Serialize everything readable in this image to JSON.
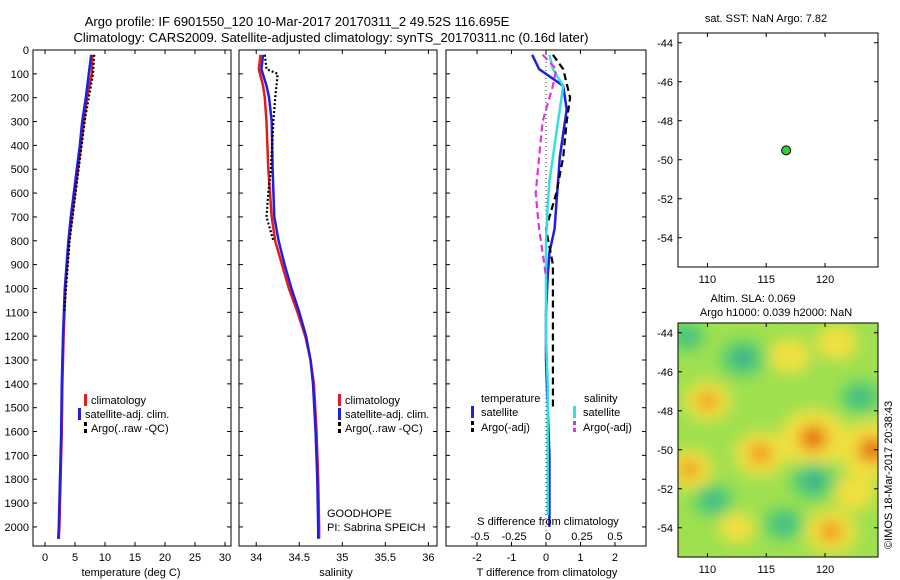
{
  "header": {
    "title_line1": "Argo profile: IF 6901550_120 10-Mar-2017 20170311_2 49.52S 116.695E",
    "title_line2": "Climatology: CARS2009. Satellite-adjusted climatology: synTS_20170311.nc (0.16d later)"
  },
  "colors": {
    "red": "#e41a1c",
    "blue": "#1f1fe0",
    "black": "#000000",
    "cyan": "#33e0e0",
    "magenta": "#e033e0",
    "argo_marker": "#33cc33"
  },
  "chart_data": [
    {
      "type": "line",
      "name": "temperature-profile",
      "xlabel": "temperature (deg C)",
      "ylabel": "",
      "xlim": [
        -2,
        31
      ],
      "ylim": [
        2080,
        0
      ],
      "x_ticks": [
        0,
        5,
        10,
        15,
        20,
        25,
        30
      ],
      "y_ticks": [
        0,
        100,
        200,
        300,
        400,
        500,
        600,
        700,
        800,
        900,
        1000,
        1100,
        1200,
        1300,
        1400,
        1500,
        1600,
        1700,
        1800,
        1900,
        2000
      ],
      "legend": {
        "placement": "lower-middle",
        "entries": [
          "climatology",
          "satellite-adj. clim.",
          "Argo(..raw -QC)"
        ]
      },
      "series": [
        {
          "name": "climatology",
          "color": "#e41a1c",
          "style": "solid",
          "points": [
            [
              7.9,
              20
            ],
            [
              7.8,
              100
            ],
            [
              7.0,
              200
            ],
            [
              6.5,
              300
            ],
            [
              6.0,
              400
            ],
            [
              5.5,
              500
            ],
            [
              5.0,
              600
            ],
            [
              4.5,
              700
            ],
            [
              4.0,
              800
            ],
            [
              3.7,
              900
            ],
            [
              3.4,
              1000
            ],
            [
              3.1,
              1200
            ],
            [
              2.9,
              1400
            ],
            [
              2.8,
              1600
            ],
            [
              2.6,
              1800
            ],
            [
              2.4,
              2000
            ],
            [
              2.3,
              2050
            ]
          ]
        },
        {
          "name": "satellite-adj. clim.",
          "color": "#1f1fe0",
          "style": "solid",
          "points": [
            [
              7.7,
              20
            ],
            [
              7.3,
              100
            ],
            [
              6.8,
              200
            ],
            [
              6.2,
              300
            ],
            [
              5.8,
              400
            ],
            [
              5.3,
              500
            ],
            [
              4.8,
              600
            ],
            [
              4.3,
              700
            ],
            [
              3.9,
              800
            ],
            [
              3.6,
              900
            ],
            [
              3.3,
              1000
            ],
            [
              3.0,
              1200
            ],
            [
              2.8,
              1400
            ],
            [
              2.7,
              1600
            ],
            [
              2.5,
              1800
            ],
            [
              2.3,
              2000
            ],
            [
              2.2,
              2050
            ]
          ]
        },
        {
          "name": "Argo(..raw -QC)",
          "color": "#000000",
          "style": "dotted",
          "points": [
            [
              8.2,
              20
            ],
            [
              8.0,
              100
            ],
            [
              7.3,
              200
            ],
            [
              6.6,
              300
            ],
            [
              6.1,
              400
            ],
            [
              5.6,
              500
            ],
            [
              5.1,
              600
            ],
            [
              4.6,
              700
            ],
            [
              4.1,
              800
            ],
            [
              3.8,
              900
            ],
            [
              3.5,
              1000
            ],
            [
              3.2,
              1100
            ]
          ]
        }
      ]
    },
    {
      "type": "line",
      "name": "salinity-profile",
      "xlabel": "salinity",
      "ylabel": "",
      "xlim": [
        33.8,
        36.1
      ],
      "ylim": [
        2080,
        0
      ],
      "x_ticks": [
        34,
        34.5,
        35,
        35.5,
        36
      ],
      "x_tick_labels": [
        "34",
        "34.5",
        "35",
        "35.5",
        "36"
      ],
      "legend": {
        "placement": "lower-middle",
        "entries": [
          "climatology",
          "satellite-adj. clim.",
          "Argo(..raw -QC)"
        ]
      },
      "annotations": [
        "GOODHOPE",
        "PI: Sabrina SPEICH"
      ],
      "series": [
        {
          "name": "climatology",
          "color": "#e41a1c",
          "style": "solid",
          "points": [
            [
              34.05,
              20
            ],
            [
              34.03,
              80
            ],
            [
              34.08,
              150
            ],
            [
              34.1,
              200
            ],
            [
              34.12,
              300
            ],
            [
              34.14,
              500
            ],
            [
              34.18,
              700
            ],
            [
              34.22,
              800
            ],
            [
              34.3,
              900
            ],
            [
              34.38,
              1000
            ],
            [
              34.48,
              1100
            ],
            [
              34.57,
              1200
            ],
            [
              34.63,
              1300
            ],
            [
              34.67,
              1400
            ],
            [
              34.7,
              1600
            ],
            [
              34.72,
              1800
            ],
            [
              34.73,
              2000
            ],
            [
              34.73,
              2050
            ]
          ]
        },
        {
          "name": "satellite-adj. clim.",
          "color": "#1f1fe0",
          "style": "solid",
          "points": [
            [
              34.08,
              20
            ],
            [
              34.06,
              80
            ],
            [
              34.12,
              150
            ],
            [
              34.15,
              200
            ],
            [
              34.18,
              300
            ],
            [
              34.19,
              500
            ],
            [
              34.21,
              700
            ],
            [
              34.26,
              800
            ],
            [
              34.33,
              900
            ],
            [
              34.41,
              1000
            ],
            [
              34.5,
              1100
            ],
            [
              34.58,
              1200
            ],
            [
              34.63,
              1300
            ],
            [
              34.66,
              1400
            ],
            [
              34.69,
              1600
            ],
            [
              34.71,
              1800
            ],
            [
              34.72,
              2000
            ],
            [
              34.72,
              2050
            ]
          ]
        },
        {
          "name": "Argo(..raw -QC)",
          "color": "#000000",
          "style": "dotted",
          "points": [
            [
              34.1,
              20
            ],
            [
              34.12,
              80
            ],
            [
              34.25,
              100
            ],
            [
              34.22,
              200
            ],
            [
              34.2,
              300
            ],
            [
              34.17,
              500
            ],
            [
              34.14,
              600
            ],
            [
              34.12,
              700
            ],
            [
              34.16,
              750
            ],
            [
              34.2,
              800
            ]
          ]
        }
      ]
    },
    {
      "type": "line",
      "name": "difference-profile",
      "xlabel": "T difference from climatology",
      "ylabel": "",
      "xlim": [
        -2.9,
        2.9
      ],
      "ylim": [
        2080,
        0
      ],
      "x_ticks": [
        -2,
        -1,
        0,
        1,
        2
      ],
      "top_axis_label": "S difference from climatology",
      "top_axis_ticks": [
        "-0.5",
        "-0.25",
        "0",
        "0.25",
        "0.5"
      ],
      "legend": {
        "placement": "lower-middle",
        "entries": [
          "temperature",
          "salinity",
          "satellite",
          "Argo(-adj)",
          "satellite",
          "Argo(-adj)"
        ]
      },
      "series": [
        {
          "name": "T satellite",
          "color": "#1f1fe0",
          "style": "solid",
          "points": [
            [
              -0.4,
              20
            ],
            [
              -0.2,
              80
            ],
            [
              0.5,
              150
            ],
            [
              0.6,
              250
            ],
            [
              0.5,
              350
            ],
            [
              0.4,
              450
            ],
            [
              0.35,
              550
            ],
            [
              0.3,
              650
            ],
            [
              0.25,
              750
            ],
            [
              0.1,
              850
            ],
            [
              0.05,
              950
            ],
            [
              0.0,
              1100
            ],
            [
              0.0,
              1300
            ],
            [
              0.05,
              1500
            ],
            [
              0.1,
              1700
            ],
            [
              0.1,
              1900
            ],
            [
              0.1,
              2000
            ]
          ]
        },
        {
          "name": "T Argo(-adj)",
          "color": "#000000",
          "style": "dashed",
          "points": [
            [
              0.2,
              20
            ],
            [
              0.5,
              80
            ],
            [
              0.7,
              200
            ],
            [
              0.6,
              300
            ],
            [
              0.5,
              450
            ],
            [
              0.3,
              600
            ],
            [
              0.0,
              750
            ],
            [
              0.2,
              900
            ],
            [
              0.2,
              1100
            ],
            [
              0.2,
              1300
            ],
            [
              0.2,
              1500
            ]
          ]
        },
        {
          "name": "S satellite",
          "color": "#33e0e0",
          "style": "solid",
          "points": [
            [
              0.1,
              20
            ],
            [
              0.2,
              80
            ],
            [
              0.5,
              150
            ],
            [
              0.4,
              250
            ],
            [
              0.3,
              350
            ],
            [
              0.2,
              450
            ],
            [
              0.1,
              550
            ],
            [
              0.05,
              650
            ],
            [
              0.0,
              800
            ],
            [
              0.0,
              1000
            ],
            [
              0.0,
              1200
            ],
            [
              0.05,
              1400
            ],
            [
              0.05,
              1600
            ],
            [
              0.05,
              1800
            ],
            [
              0.05,
              1950
            ]
          ]
        },
        {
          "name": "S Argo(-adj)",
          "color": "#e033e0",
          "style": "dashed",
          "points": [
            [
              -0.1,
              20
            ],
            [
              0.3,
              80
            ],
            [
              0.2,
              150
            ],
            [
              -0.1,
              300
            ],
            [
              -0.2,
              450
            ],
            [
              -0.3,
              600
            ],
            [
              -0.2,
              750
            ],
            [
              -0.1,
              850
            ],
            [
              0.0,
              950
            ]
          ]
        }
      ]
    },
    {
      "type": "scatter",
      "name": "sst-map",
      "title": "sat. SST: NaN Argo: 7.82",
      "xlim": [
        107.5,
        124.5
      ],
      "ylim": [
        -55.5,
        -43.5
      ],
      "x_ticks": [
        110,
        115,
        120
      ],
      "y_ticks": [
        -44,
        -46,
        -48,
        -50,
        -52,
        -54
      ],
      "points": [
        {
          "x": 116.695,
          "y": -49.52
        }
      ]
    },
    {
      "type": "heatmap",
      "name": "sla-map",
      "title_line1": "Altim. SLA: 0.069",
      "title_line2": "Argo h1000: 0.039 h2000: NaN",
      "xlim": [
        107.5,
        124.5
      ],
      "ylim": [
        -55.5,
        -43.5
      ],
      "x_ticks": [
        110,
        115,
        120
      ],
      "y_ticks": [
        -44,
        -46,
        -48,
        -50,
        -52,
        -54
      ],
      "blobs": [
        {
          "x": 119,
          "y": -49.4,
          "v": 1.0
        },
        {
          "x": 124,
          "y": -50.0,
          "v": 1.0
        },
        {
          "x": 114.5,
          "y": -50.2,
          "v": 0.7
        },
        {
          "x": 120.5,
          "y": -54.2,
          "v": 0.7
        },
        {
          "x": 110,
          "y": -47.5,
          "v": 0.6
        },
        {
          "x": 108.5,
          "y": -51.0,
          "v": 0.6
        },
        {
          "x": 117,
          "y": -45.2,
          "v": 0.5
        },
        {
          "x": 121,
          "y": -44.5,
          "v": 0.5
        },
        {
          "x": 122.5,
          "y": -52.2,
          "v": 0.5
        },
        {
          "x": 112.5,
          "y": -54.0,
          "v": 0.4
        },
        {
          "x": 113,
          "y": -45.3,
          "v": -0.6
        },
        {
          "x": 119,
          "y": -51.6,
          "v": -0.6
        },
        {
          "x": 110.5,
          "y": -52.6,
          "v": -0.5
        },
        {
          "x": 123,
          "y": -47.3,
          "v": -0.5
        },
        {
          "x": 116.5,
          "y": -53.8,
          "v": -0.5
        },
        {
          "x": 108.3,
          "y": -44.2,
          "v": -0.4
        }
      ]
    }
  ],
  "watermark": "©IMOS 18-Mar-2017 20:38:43"
}
